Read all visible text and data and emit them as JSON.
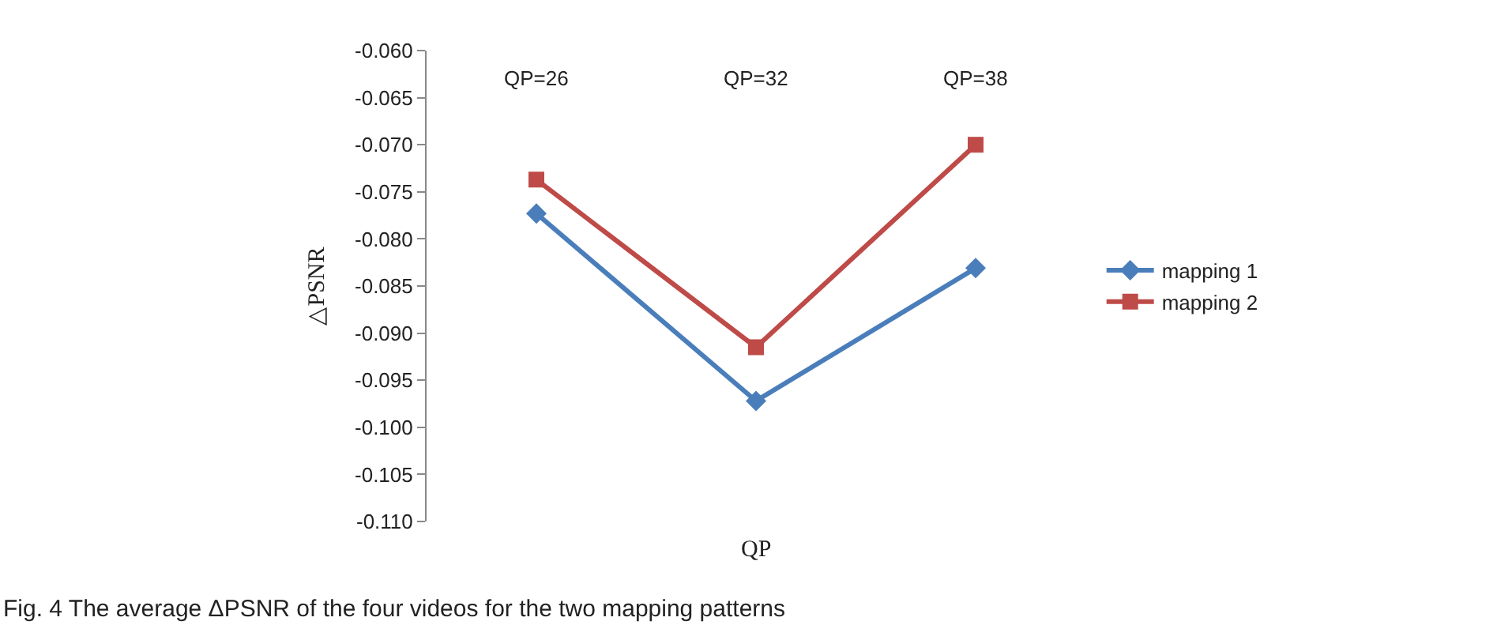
{
  "chart_data": {
    "type": "line",
    "xlabel": "QP",
    "ylabel": "△PSNR",
    "categories": [
      "QP=26",
      "QP=32",
      "QP=38"
    ],
    "series": [
      {
        "name": "mapping 1",
        "color": "#4a7ebb",
        "marker": "diamond",
        "values": [
          -0.0773,
          -0.0972,
          -0.0831
        ]
      },
      {
        "name": "mapping 2",
        "color": "#be4b48",
        "marker": "square",
        "values": [
          -0.0737,
          -0.0915,
          -0.07
        ]
      }
    ],
    "ylim": [
      -0.11,
      -0.06
    ],
    "yticks": [
      {
        "value": -0.06,
        "label": "-0.060"
      },
      {
        "value": -0.065,
        "label": "-0.065"
      },
      {
        "value": -0.07,
        "label": "-0.070"
      },
      {
        "value": -0.075,
        "label": "-0.075"
      },
      {
        "value": -0.08,
        "label": "-0.080"
      },
      {
        "value": -0.085,
        "label": "-0.085"
      },
      {
        "value": -0.09,
        "label": "-0.090"
      },
      {
        "value": -0.095,
        "label": "-0.095"
      },
      {
        "value": -0.1,
        "label": "-0.100"
      },
      {
        "value": -0.105,
        "label": "-0.105"
      },
      {
        "value": -0.11,
        "label": "-0.110"
      }
    ],
    "grid": false,
    "legend": "right",
    "line_style": "solid",
    "annotations": [
      "Fig. 4 The average ΔPSNR of the four videos for the two mapping patterns"
    ]
  }
}
